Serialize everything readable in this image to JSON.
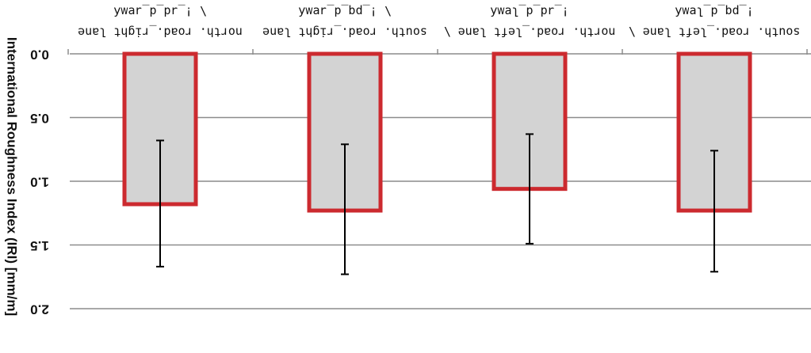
{
  "chart_data": {
    "type": "bar",
    "orientation": "inverted",
    "categories": [
      [
        "\\ !_ɹd_d_ɹɐʍʎ",
        "north. road._right lane"
      ],
      [
        "\\ !_pq_d_ɹɐʍʎ",
        "south. road._right lane"
      ],
      [
        "!_ɹd_d_lɐʍʎ",
        "north. road._left lane \\"
      ],
      [
        "!_pq_d_lɐʍʎ",
        "south. road._left lane \\"
      ]
    ],
    "values": [
      1.18,
      1.23,
      1.06,
      1.23
    ],
    "error_low": [
      0.68,
      0.71,
      0.63,
      0.76
    ],
    "error_high": [
      1.67,
      1.73,
      1.49,
      1.71
    ],
    "ylabel": "International Roughness Index (IRI) [mm/m]",
    "ylim": [
      0.0,
      2.0
    ],
    "yticks": [
      "0.0",
      "0.5",
      "1.0",
      "1.5",
      "2.0"
    ],
    "ytick_values": [
      0.0,
      0.5,
      1.0,
      1.5,
      2.0
    ],
    "grid": true,
    "colors": {
      "bar_fill": "#d3d3d3",
      "bar_stroke": "#cc2a2f",
      "grid": "#8c8c8c",
      "error_bar": "#000000"
    }
  }
}
